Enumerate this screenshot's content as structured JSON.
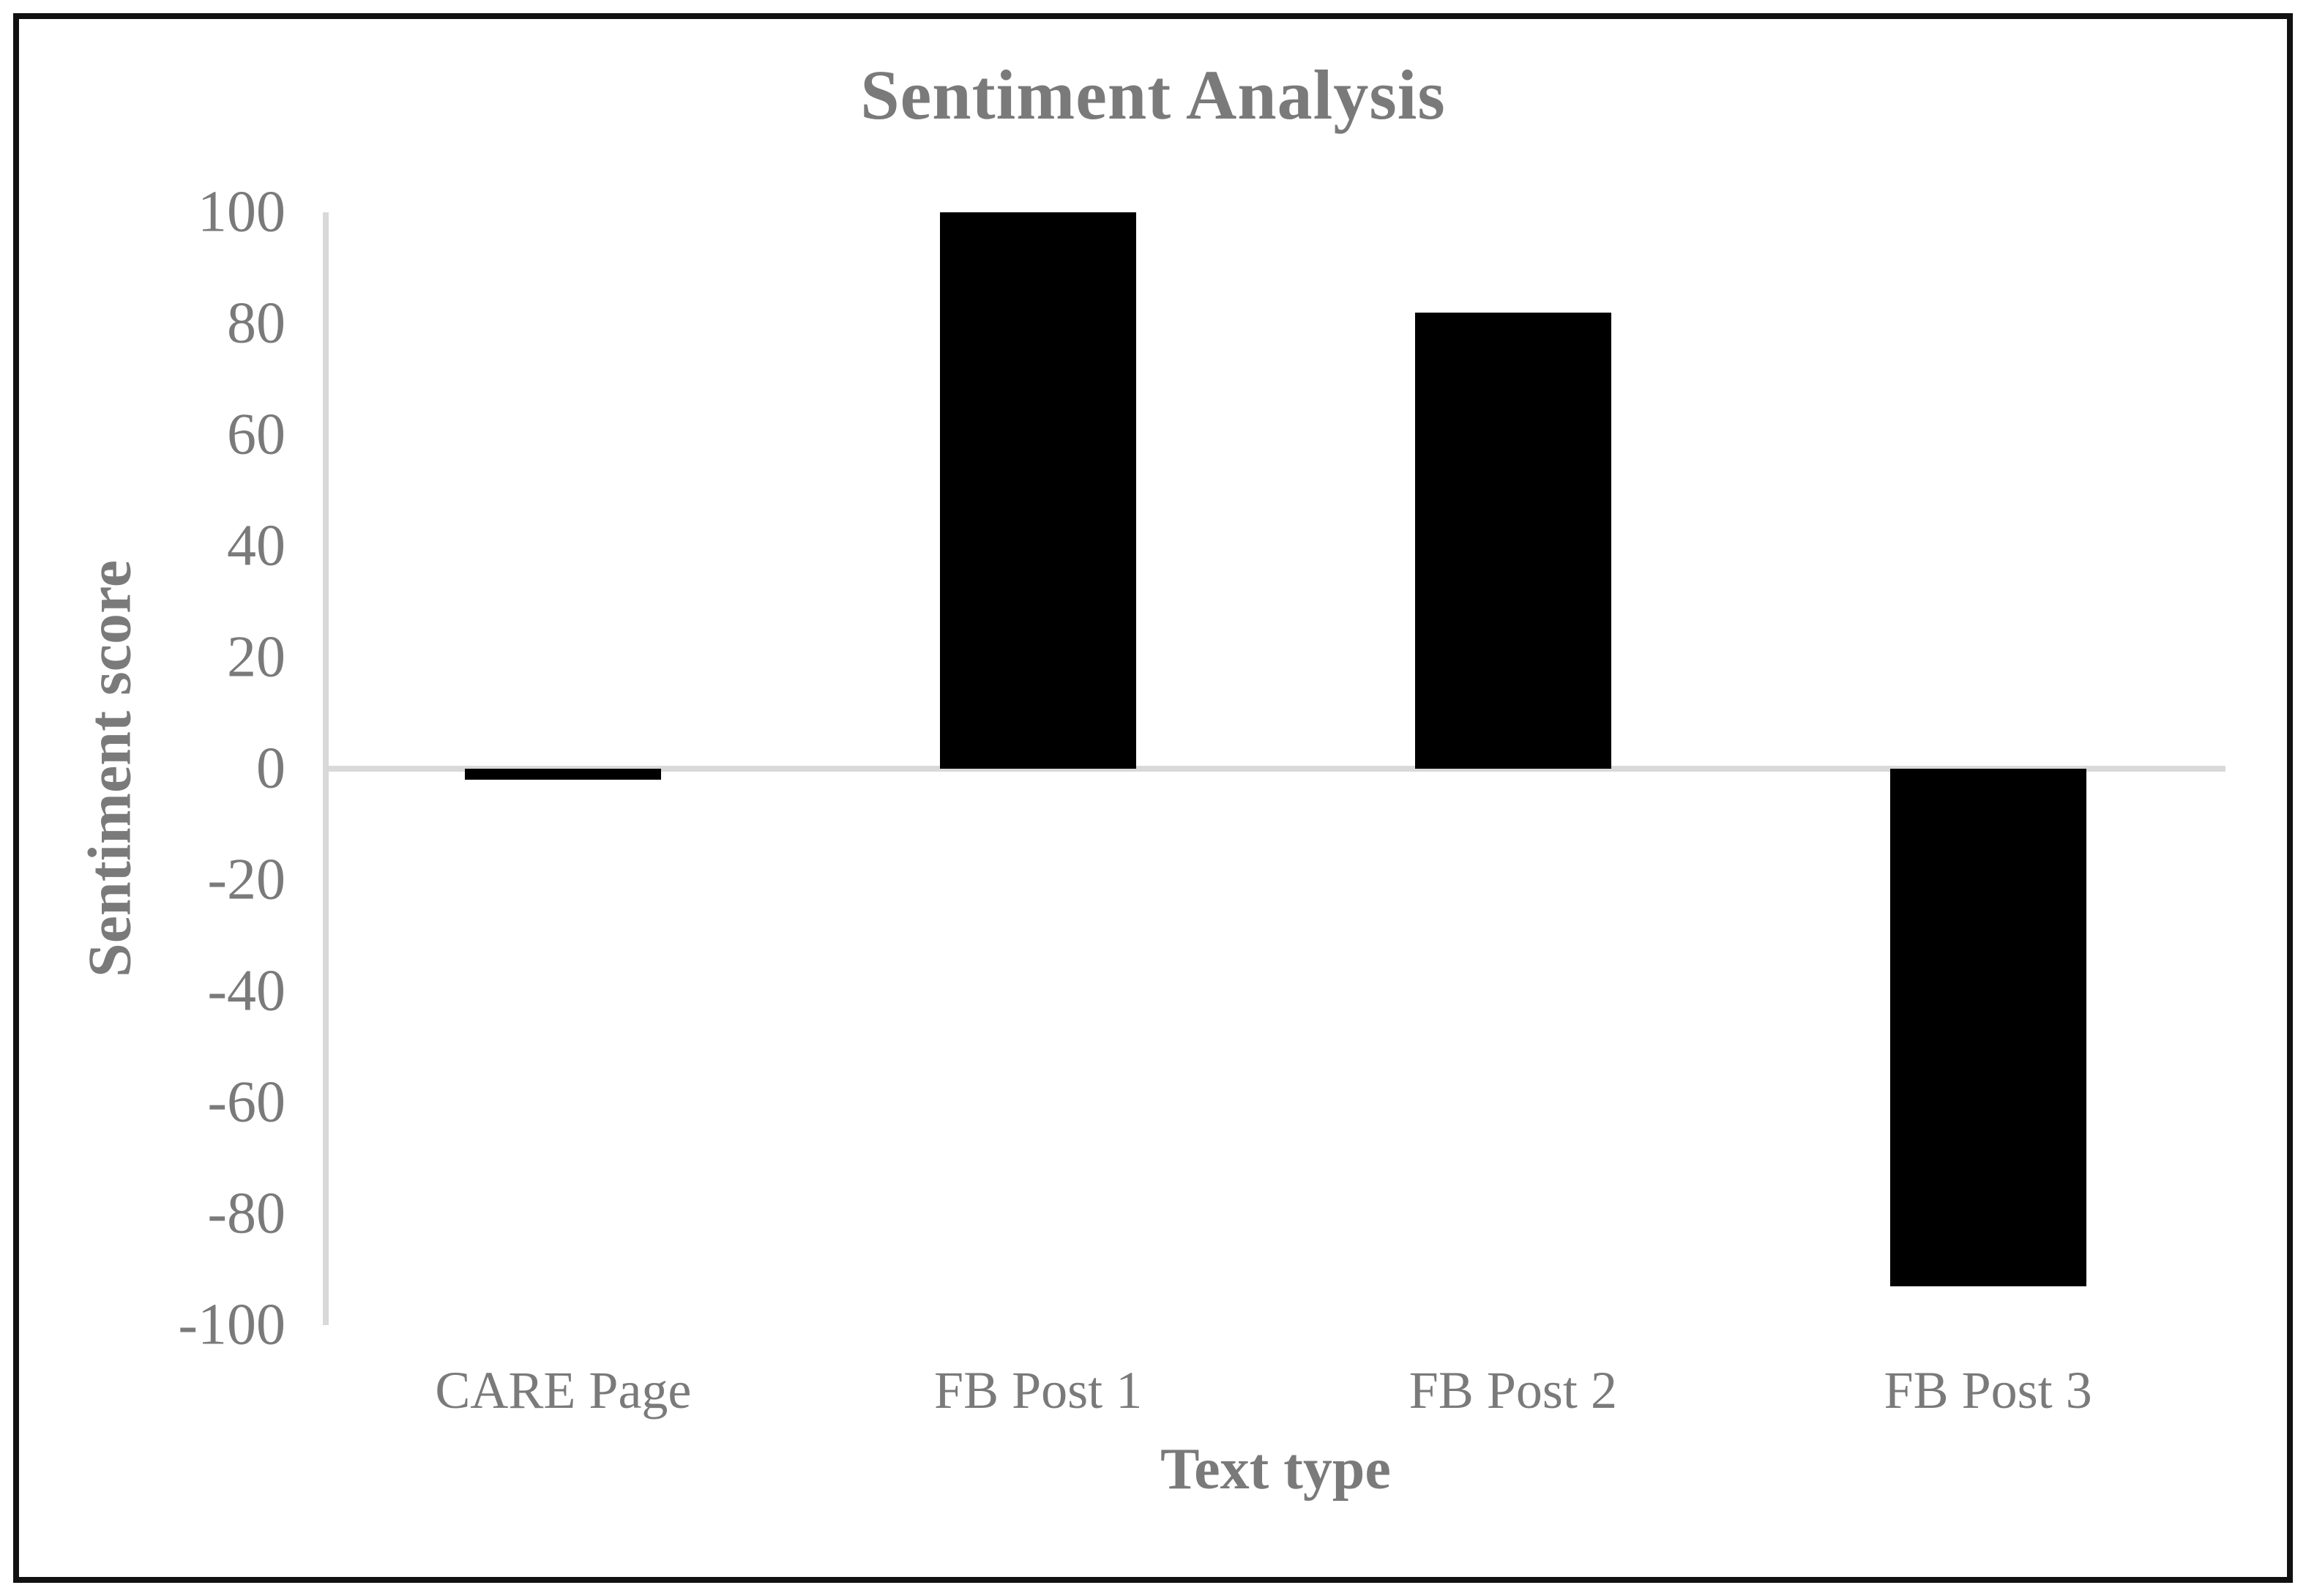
{
  "chart_data": {
    "type": "bar",
    "title": "Sentiment Analysis",
    "xlabel": "Text type",
    "ylabel": "Sentiment score",
    "categories": [
      "CARE Page",
      "FB Post 1",
      "FB Post 2",
      "FB Post 3"
    ],
    "values": [
      -2,
      100,
      82,
      -93
    ],
    "ylim": [
      -100,
      100
    ],
    "ytick_step": 20,
    "yticks": [
      100,
      80,
      60,
      40,
      20,
      0,
      -20,
      -40,
      -60,
      -80,
      -100
    ],
    "grid": false,
    "legend_position": "none",
    "bar_color": "#000000",
    "text_color": "#7a7a7a",
    "axis_line_color": "#d9d9d9",
    "frame_color": "#111111"
  }
}
